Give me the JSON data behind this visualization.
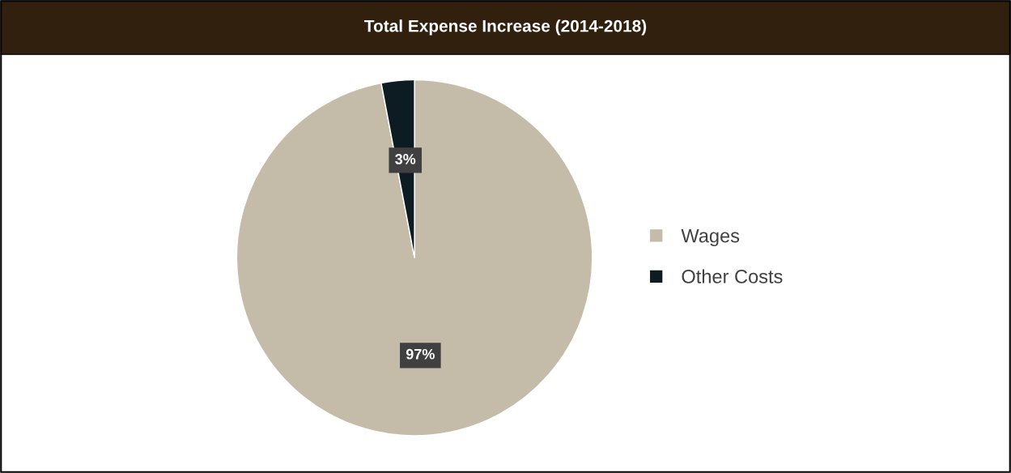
{
  "chart_data": {
    "type": "pie",
    "title": "Total Expense Increase (2014-2018)",
    "categories": [
      "Wages",
      "Other Costs"
    ],
    "values": [
      97,
      3
    ],
    "colors": [
      "#c4bba8",
      "#0d1c22"
    ],
    "value_labels": [
      "97%",
      "3%"
    ],
    "legend": "right"
  }
}
